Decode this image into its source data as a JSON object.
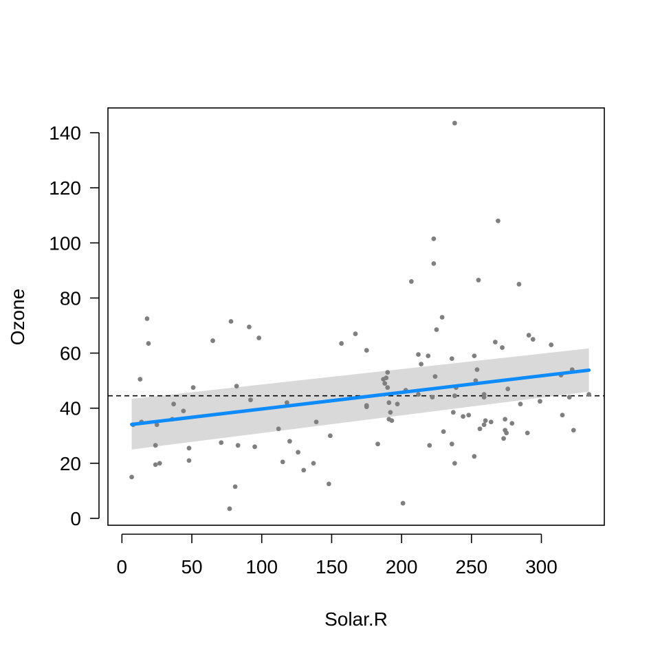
{
  "chart_data": {
    "type": "scatter",
    "title": "",
    "xlabel": "Solar.R",
    "ylabel": "Ozone",
    "xlim": [
      -10,
      345
    ],
    "ylim": [
      -2.5,
      149
    ],
    "xticks": [
      0,
      50,
      100,
      150,
      200,
      250,
      300
    ],
    "yticks": [
      0,
      20,
      40,
      60,
      80,
      100,
      120,
      140
    ],
    "grid": false,
    "legend": "none",
    "colors": {
      "points": "#7f7f7f",
      "fit_line": "#0d8bff",
      "confidence_band": "#d9d9d9",
      "reference_line": "#000000"
    },
    "points": [
      {
        "x": 7,
        "y": 15
      },
      {
        "x": 8,
        "y": 34
      },
      {
        "x": 13,
        "y": 50.5
      },
      {
        "x": 14,
        "y": 35
      },
      {
        "x": 18,
        "y": 72.5
      },
      {
        "x": 19,
        "y": 63.5
      },
      {
        "x": 24,
        "y": 26.5
      },
      {
        "x": 24,
        "y": 19.5
      },
      {
        "x": 25,
        "y": 34
      },
      {
        "x": 27,
        "y": 20
      },
      {
        "x": 36,
        "y": 36
      },
      {
        "x": 37,
        "y": 41.5
      },
      {
        "x": 44,
        "y": 39
      },
      {
        "x": 48,
        "y": 21
      },
      {
        "x": 48,
        "y": 25.5
      },
      {
        "x": 51,
        "y": 47.5
      },
      {
        "x": 65,
        "y": 64.5
      },
      {
        "x": 71,
        "y": 27.5
      },
      {
        "x": 77,
        "y": 3.5
      },
      {
        "x": 78,
        "y": 71.5
      },
      {
        "x": 81,
        "y": 11.5
      },
      {
        "x": 82,
        "y": 48
      },
      {
        "x": 83,
        "y": 26.5
      },
      {
        "x": 91,
        "y": 69.5
      },
      {
        "x": 92,
        "y": 43
      },
      {
        "x": 95,
        "y": 26
      },
      {
        "x": 98,
        "y": 65.5
      },
      {
        "x": 112,
        "y": 32.5
      },
      {
        "x": 115,
        "y": 20.5
      },
      {
        "x": 118,
        "y": 42
      },
      {
        "x": 120,
        "y": 28
      },
      {
        "x": 126,
        "y": 24
      },
      {
        "x": 130,
        "y": 17.5
      },
      {
        "x": 137,
        "y": 20
      },
      {
        "x": 139,
        "y": 35
      },
      {
        "x": 148,
        "y": 12.5
      },
      {
        "x": 149,
        "y": 30
      },
      {
        "x": 157,
        "y": 63.5
      },
      {
        "x": 167,
        "y": 67
      },
      {
        "x": 175,
        "y": 61
      },
      {
        "x": 175,
        "y": 40.5
      },
      {
        "x": 175,
        "y": 41
      },
      {
        "x": 183,
        "y": 27
      },
      {
        "x": 187,
        "y": 50.5
      },
      {
        "x": 188,
        "y": 49
      },
      {
        "x": 189,
        "y": 51
      },
      {
        "x": 190,
        "y": 53
      },
      {
        "x": 190,
        "y": 47.5
      },
      {
        "x": 191,
        "y": 36
      },
      {
        "x": 191,
        "y": 42
      },
      {
        "x": 192,
        "y": 38.5
      },
      {
        "x": 193,
        "y": 35.5
      },
      {
        "x": 197,
        "y": 41.5
      },
      {
        "x": 201,
        "y": 5.5
      },
      {
        "x": 203,
        "y": 46.5
      },
      {
        "x": 207,
        "y": 86
      },
      {
        "x": 212,
        "y": 59.5
      },
      {
        "x": 212,
        "y": 45
      },
      {
        "x": 214,
        "y": 56
      },
      {
        "x": 219,
        "y": 59
      },
      {
        "x": 220,
        "y": 26.5
      },
      {
        "x": 222,
        "y": 44
      },
      {
        "x": 223,
        "y": 101.5
      },
      {
        "x": 223,
        "y": 92.5
      },
      {
        "x": 224,
        "y": 51.5
      },
      {
        "x": 225,
        "y": 68.5
      },
      {
        "x": 229,
        "y": 73
      },
      {
        "x": 230,
        "y": 31.5
      },
      {
        "x": 236,
        "y": 58
      },
      {
        "x": 236,
        "y": 27
      },
      {
        "x": 237,
        "y": 38.5
      },
      {
        "x": 238,
        "y": 44.5
      },
      {
        "x": 238,
        "y": 20
      },
      {
        "x": 238,
        "y": 143.5
      },
      {
        "x": 239,
        "y": 47.5
      },
      {
        "x": 244,
        "y": 37
      },
      {
        "x": 248,
        "y": 37.5
      },
      {
        "x": 252,
        "y": 59
      },
      {
        "x": 252,
        "y": 22.5
      },
      {
        "x": 253,
        "y": 50
      },
      {
        "x": 254,
        "y": 54
      },
      {
        "x": 255,
        "y": 86.5
      },
      {
        "x": 256,
        "y": 32.5
      },
      {
        "x": 259,
        "y": 34
      },
      {
        "x": 259,
        "y": 45
      },
      {
        "x": 259,
        "y": 44
      },
      {
        "x": 260,
        "y": 35.5
      },
      {
        "x": 264,
        "y": 35
      },
      {
        "x": 267,
        "y": 64
      },
      {
        "x": 269,
        "y": 108
      },
      {
        "x": 272,
        "y": 62
      },
      {
        "x": 273,
        "y": 29
      },
      {
        "x": 274,
        "y": 32
      },
      {
        "x": 274,
        "y": 36
      },
      {
        "x": 275,
        "y": 31
      },
      {
        "x": 276,
        "y": 47
      },
      {
        "x": 279,
        "y": 34.5
      },
      {
        "x": 284,
        "y": 85
      },
      {
        "x": 285,
        "y": 41.5
      },
      {
        "x": 290,
        "y": 31
      },
      {
        "x": 291,
        "y": 66.5
      },
      {
        "x": 294,
        "y": 65
      },
      {
        "x": 299,
        "y": 42.5
      },
      {
        "x": 307,
        "y": 63
      },
      {
        "x": 314,
        "y": 52
      },
      {
        "x": 315,
        "y": 37.5
      },
      {
        "x": 320,
        "y": 44
      },
      {
        "x": 322,
        "y": 54
      },
      {
        "x": 323,
        "y": 32
      },
      {
        "x": 334,
        "y": 45
      }
    ],
    "fit_line": {
      "x": [
        7,
        334
      ],
      "y": [
        34.1,
        53.8
      ]
    },
    "confidence_band": {
      "x": [
        7,
        334
      ],
      "lower": [
        25.0,
        46.0
      ],
      "upper": [
        43.4,
        61.7
      ]
    },
    "reference_line": {
      "y": 44.5,
      "style": "dashed"
    }
  }
}
